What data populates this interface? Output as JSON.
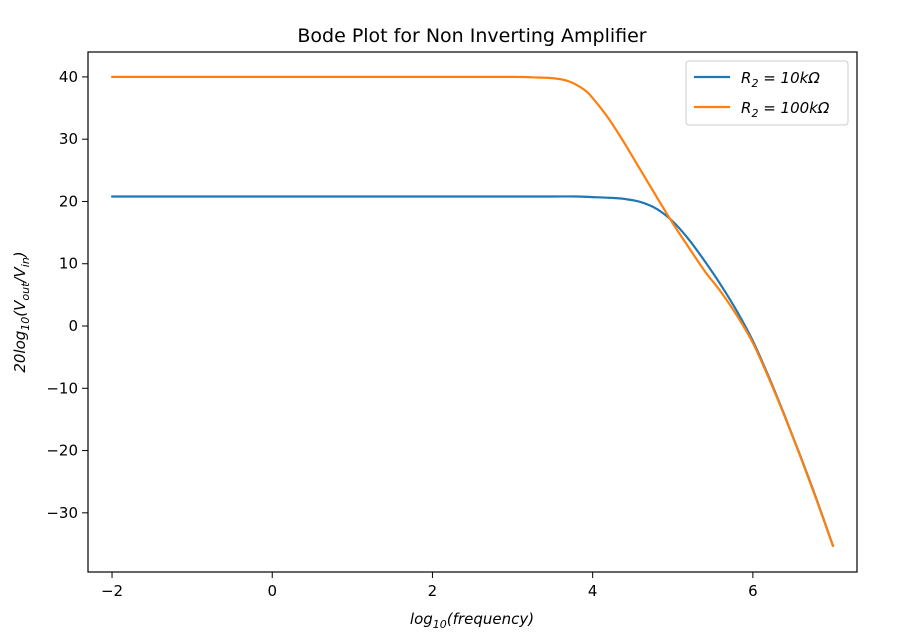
{
  "chart_data": {
    "type": "line",
    "title": "Bode Plot for Non Inverting Amplifier",
    "xlabel": {
      "base": "log",
      "sub": "10",
      "rest": "(frequency)"
    },
    "ylabel": {
      "prefix": "20log",
      "sub1": "10",
      "mid": "(V",
      "sub2": "out",
      "mid2": "/V",
      "sub3": "in",
      "suffix": ")"
    },
    "xlim": [
      -2.3,
      7.3
    ],
    "ylim": [
      -39.5,
      44
    ],
    "xticks": [
      -2,
      0,
      2,
      4,
      6
    ],
    "xtick_labels": [
      "−2",
      "0",
      "2",
      "4",
      "6"
    ],
    "yticks": [
      -30,
      -20,
      -10,
      0,
      10,
      20,
      30,
      40
    ],
    "ytick_labels": [
      "−30",
      "−20",
      "−10",
      "0",
      "10",
      "20",
      "30",
      "40"
    ],
    "grid": false,
    "legend_position": "top-right",
    "series": [
      {
        "name": "R_2 = 10kΩ",
        "legend": {
          "a": "R",
          "sub": "2",
          "b": " = 10kΩ"
        },
        "color": "#1f77b4",
        "x": [
          -2,
          0,
          2,
          3,
          3.5,
          3.8,
          4,
          4.2,
          4.4,
          4.6,
          4.8,
          5,
          5.2,
          5.4,
          5.6,
          5.8,
          6,
          6.2,
          6.4,
          6.6,
          6.8,
          7
        ],
        "y": [
          20.8,
          20.8,
          20.8,
          20.8,
          20.8,
          20.8,
          20.7,
          20.6,
          20.4,
          19.9,
          18.8,
          16.8,
          13.9,
          10.4,
          6.6,
          2.4,
          -2.4,
          -8.2,
          -14.5,
          -21.1,
          -28.0,
          -35.3
        ]
      },
      {
        "name": "R_2 = 100kΩ",
        "legend": {
          "a": "R",
          "sub": "2",
          "b": " = 100kΩ"
        },
        "color": "#ff7f0e",
        "x": [
          -2,
          0,
          2,
          3,
          3.3,
          3.5,
          3.7,
          3.9,
          4.0,
          4.2,
          4.4,
          4.6,
          4.8,
          5,
          5.2,
          5.4,
          5.6,
          5.8,
          6,
          6.2,
          6.4,
          6.6,
          6.8,
          7
        ],
        "y": [
          40.0,
          40.0,
          40.0,
          40.0,
          39.9,
          39.8,
          39.3,
          37.9,
          36.6,
          33.3,
          29.3,
          25.0,
          20.7,
          16.5,
          12.6,
          8.8,
          5.5,
          1.7,
          -2.7,
          -8.4,
          -14.6,
          -21.2,
          -28.1,
          -35.3
        ]
      }
    ]
  }
}
